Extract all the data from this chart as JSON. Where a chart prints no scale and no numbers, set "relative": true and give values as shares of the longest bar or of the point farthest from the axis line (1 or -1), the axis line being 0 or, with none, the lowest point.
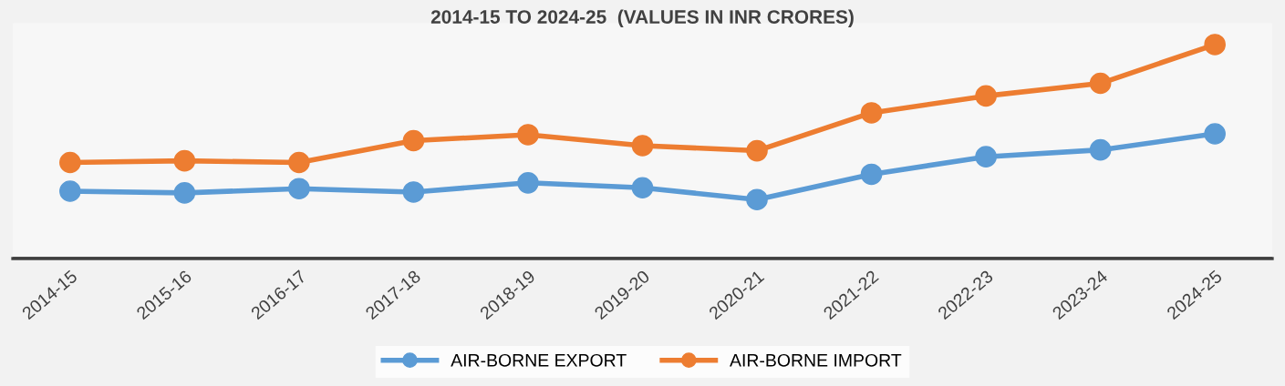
{
  "chart_data": {
    "type": "line",
    "title": "2014-15 TO 2024-25  (VALUES IN INR CRORES)",
    "relative": true,
    "categories": [
      "2014-15",
      "2015-16",
      "2016-17",
      "2017-18",
      "2018-19",
      "2019-20",
      "2020-21",
      "2021-22",
      "2022-23",
      "2023-24",
      "2024-25"
    ],
    "series": [
      {
        "name": "AIR-BORNE EXPORT",
        "color": "#5b9bd5",
        "values": [
          0.315,
          0.307,
          0.327,
          0.311,
          0.354,
          0.331,
          0.276,
          0.394,
          0.476,
          0.508,
          0.583
        ]
      },
      {
        "name": "AIR-BORNE IMPORT",
        "color": "#ed7d31",
        "values": [
          0.449,
          0.457,
          0.449,
          0.551,
          0.579,
          0.528,
          0.504,
          0.681,
          0.76,
          0.819,
          1
        ]
      }
    ],
    "marker": "circle",
    "line_style": "solid",
    "legend": "bottom",
    "grid": false
  }
}
